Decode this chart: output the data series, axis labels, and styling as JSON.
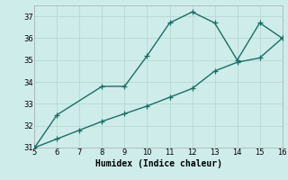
{
  "xlabel": "Humidex (Indice chaleur)",
  "ylabel": "",
  "background_color": "#ceecea",
  "grid_color": "#b8d8d4",
  "line_color": "#1a6e64",
  "spine_color": "#aaaaaa",
  "xlim": [
    5,
    16
  ],
  "ylim": [
    31,
    37.5
  ],
  "xticks": [
    5,
    6,
    7,
    8,
    9,
    10,
    11,
    12,
    13,
    14,
    15,
    16
  ],
  "yticks": [
    31,
    32,
    33,
    34,
    35,
    36,
    37
  ],
  "series1_x": [
    5,
    6,
    8,
    9,
    10,
    11,
    12,
    13,
    14,
    15,
    16
  ],
  "series1_y": [
    31.0,
    32.5,
    33.8,
    33.8,
    35.2,
    36.7,
    37.2,
    36.7,
    35.0,
    36.7,
    36.0
  ],
  "series2_x": [
    5,
    6,
    7,
    8,
    9,
    10,
    11,
    12,
    13,
    14,
    15,
    16
  ],
  "series2_y": [
    31.0,
    31.4,
    31.8,
    32.2,
    32.55,
    32.9,
    33.3,
    33.7,
    34.5,
    34.9,
    35.1,
    36.0
  ],
  "marker": "+",
  "markersize": 4,
  "linewidth": 1.0,
  "tick_fontsize": 6,
  "xlabel_fontsize": 7
}
